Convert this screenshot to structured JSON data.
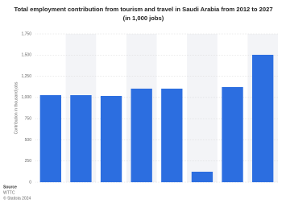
{
  "chart_data": {
    "type": "bar",
    "title": "Total employment contribution from tourism and travel in Saudi Arabia from 2012 to 2027 (in 1,000 jobs)",
    "y_label": "Contribution in thousand jobs",
    "categories": [
      null,
      null,
      null,
      null,
      null,
      null,
      null,
      null
    ],
    "values": [
      1027,
      1027,
      1018,
      1104,
      1104,
      124,
      1123,
      1503
    ],
    "color": "#2c6ee0",
    "ylim": [
      0,
      1750
    ],
    "yticks": [
      0,
      250,
      500,
      750,
      {
        "value": 1000,
        "label": "1,000"
      },
      {
        "value": 1250,
        "label": "1,250"
      },
      {
        "value": 1500,
        "label": "1,500"
      },
      {
        "value": 1750,
        "label": "1,750"
      }
    ],
    "grid": true,
    "source_lines": [
      "Source",
      "WTTC",
      "© Statista 2024"
    ]
  }
}
